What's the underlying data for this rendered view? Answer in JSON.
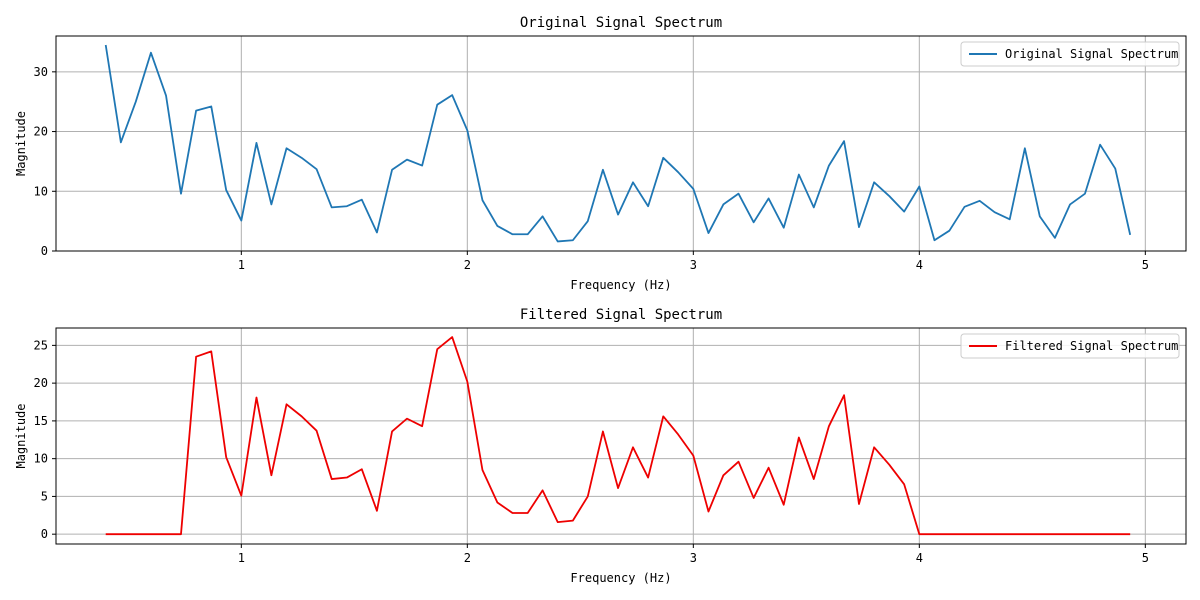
{
  "chart_data": [
    {
      "type": "line",
      "title": "Original Signal Spectrum",
      "xlabel": "Frequency (Hz)",
      "ylabel": "Magnitude",
      "xlim": [
        0.18,
        5.18
      ],
      "ylim": [
        0,
        36
      ],
      "xticks": [
        1,
        2,
        3,
        4,
        5
      ],
      "yticks": [
        0,
        10,
        20,
        30
      ],
      "grid": true,
      "legend": "top-right",
      "x": [
        0.4,
        0.467,
        0.533,
        0.6,
        0.667,
        0.733,
        0.8,
        0.867,
        0.933,
        1.0,
        1.067,
        1.133,
        1.2,
        1.267,
        1.333,
        1.4,
        1.467,
        1.533,
        1.6,
        1.667,
        1.733,
        1.8,
        1.867,
        1.933,
        2.0,
        2.067,
        2.133,
        2.2,
        2.267,
        2.333,
        2.4,
        2.467,
        2.533,
        2.6,
        2.667,
        2.733,
        2.8,
        2.867,
        2.933,
        3.0,
        3.067,
        3.133,
        3.2,
        3.267,
        3.333,
        3.4,
        3.467,
        3.533,
        3.6,
        3.667,
        3.733,
        3.8,
        3.867,
        3.933,
        4.0,
        4.067,
        4.133,
        4.2,
        4.267,
        4.333,
        4.4,
        4.467,
        4.533,
        4.6,
        4.667,
        4.733,
        4.8,
        4.867,
        4.933
      ],
      "series": [
        {
          "name": "Original Signal Spectrum",
          "color": "#1f77b4",
          "values": [
            34.5,
            18.2,
            25.0,
            33.2,
            26.0,
            9.6,
            23.5,
            24.2,
            10.2,
            5.1,
            18.1,
            7.8,
            17.2,
            15.6,
            13.7,
            7.3,
            7.5,
            8.6,
            3.1,
            13.6,
            15.3,
            14.3,
            24.5,
            26.1,
            20.2,
            8.5,
            4.2,
            2.8,
            2.8,
            5.8,
            1.6,
            1.8,
            5.0,
            13.6,
            6.1,
            11.5,
            7.5,
            15.6,
            13.2,
            10.4,
            3.0,
            7.8,
            9.6,
            4.8,
            8.8,
            3.9,
            12.8,
            7.3,
            14.3,
            18.4,
            4.0,
            11.5,
            9.2,
            6.6,
            10.8,
            1.8,
            3.4,
            7.4,
            8.4,
            6.5,
            5.3,
            17.2,
            5.8,
            2.2,
            7.8,
            9.6,
            17.8,
            13.8,
            2.7
          ]
        }
      ]
    },
    {
      "type": "line",
      "title": "Filtered Signal Spectrum",
      "xlabel": "Frequency (Hz)",
      "ylabel": "Magnitude",
      "xlim": [
        0.18,
        5.18
      ],
      "ylim": [
        -1.3,
        27.3
      ],
      "xticks": [
        1,
        2,
        3,
        4,
        5
      ],
      "yticks": [
        0,
        5,
        10,
        15,
        20,
        25
      ],
      "grid": true,
      "legend": "top-right",
      "x": [
        0.4,
        0.467,
        0.533,
        0.6,
        0.667,
        0.733,
        0.8,
        0.867,
        0.933,
        1.0,
        1.067,
        1.133,
        1.2,
        1.267,
        1.333,
        1.4,
        1.467,
        1.533,
        1.6,
        1.667,
        1.733,
        1.8,
        1.867,
        1.933,
        2.0,
        2.067,
        2.133,
        2.2,
        2.267,
        2.333,
        2.4,
        2.467,
        2.533,
        2.6,
        2.667,
        2.733,
        2.8,
        2.867,
        2.933,
        3.0,
        3.067,
        3.133,
        3.2,
        3.267,
        3.333,
        3.4,
        3.467,
        3.533,
        3.6,
        3.667,
        3.733,
        3.8,
        3.867,
        3.933,
        4.0,
        4.067,
        4.133,
        4.2,
        4.267,
        4.333,
        4.4,
        4.467,
        4.533,
        4.6,
        4.667,
        4.733,
        4.8,
        4.867,
        4.933
      ],
      "series": [
        {
          "name": "Filtered Signal Spectrum",
          "color": "#ee0000",
          "values": [
            0,
            0,
            0,
            0,
            0,
            0,
            23.5,
            24.2,
            10.2,
            5.1,
            18.1,
            7.8,
            17.2,
            15.6,
            13.7,
            7.3,
            7.5,
            8.6,
            3.1,
            13.6,
            15.3,
            14.3,
            24.5,
            26.1,
            20.2,
            8.5,
            4.2,
            2.8,
            2.8,
            5.8,
            1.6,
            1.8,
            5.0,
            13.6,
            6.1,
            11.5,
            7.5,
            15.6,
            13.2,
            10.4,
            3.0,
            7.8,
            9.6,
            4.8,
            8.8,
            3.9,
            12.8,
            7.3,
            14.3,
            18.4,
            4.0,
            11.5,
            9.2,
            6.6,
            0,
            0,
            0,
            0,
            0,
            0,
            0,
            0,
            0,
            0,
            0,
            0,
            0,
            0,
            0
          ]
        }
      ]
    }
  ]
}
